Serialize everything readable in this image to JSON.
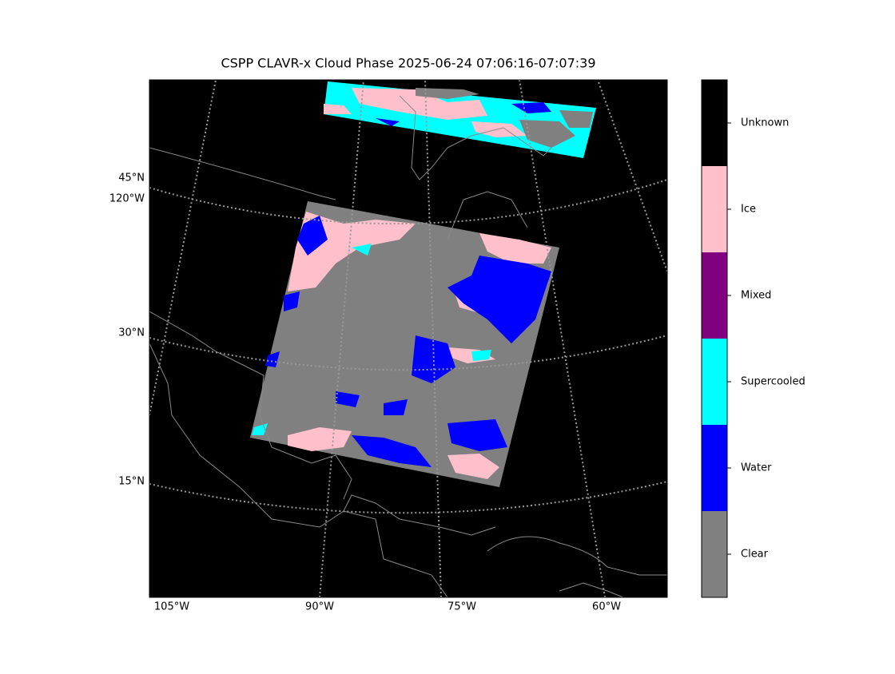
{
  "title": "CSPP CLAVR-x Cloud Phase 2025-06-24 07:06:16-07:07:39",
  "map": {
    "lat_labels": [
      "45°N",
      "120°W",
      "30°N",
      "15°N"
    ],
    "lon_labels": [
      "105°W",
      "90°W",
      "75°W",
      "60°W"
    ]
  },
  "colorbar": {
    "classes": [
      {
        "label": "Unknown",
        "color": "#000000"
      },
      {
        "label": "Ice",
        "color": "#ffc0cb"
      },
      {
        "label": "Mixed",
        "color": "#800080"
      },
      {
        "label": "Supercooled",
        "color": "#00ffff"
      },
      {
        "label": "Water",
        "color": "#0000ff"
      },
      {
        "label": "Clear",
        "color": "#808080"
      }
    ]
  }
}
